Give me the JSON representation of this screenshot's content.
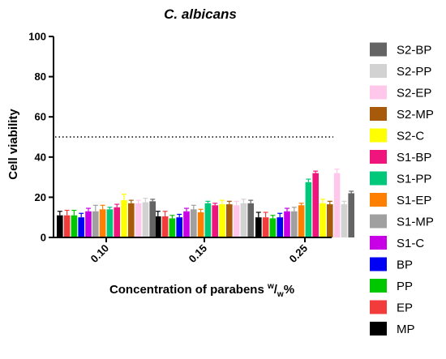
{
  "chart_data": {
    "type": "bar",
    "title": "C. albicans",
    "ylabel": "Cell viability",
    "xlabel_main": "Concentration of parabens ",
    "xlabel_sup": "w",
    "xlabel_slash": "/",
    "xlabel_sub": "w",
    "xlabel_tail": "%",
    "ylim": [
      0,
      100
    ],
    "yticks": [
      "0",
      "20",
      "40",
      "60",
      "80",
      "100"
    ],
    "reference_line": {
      "y": 50,
      "style": "dotted"
    },
    "categories": [
      "0.10",
      "0.15",
      "0.25"
    ],
    "series": [
      {
        "name": "MP",
        "color": "#000000",
        "values": [
          11,
          10.5,
          10
        ],
        "errors": [
          2,
          2.5,
          2.5
        ]
      },
      {
        "name": "EP",
        "color": "#f23c3c",
        "values": [
          11,
          10.5,
          10
        ],
        "errors": [
          2.5,
          2.5,
          2.5
        ]
      },
      {
        "name": "PP",
        "color": "#00c800",
        "values": [
          11,
          9.5,
          9.5
        ],
        "errors": [
          2.5,
          1.5,
          1.5
        ]
      },
      {
        "name": "BP",
        "color": "#0000f5",
        "values": [
          10,
          10,
          10
        ],
        "errors": [
          2,
          1.5,
          2
        ]
      },
      {
        "name": "S1-C",
        "color": "#c800e6",
        "values": [
          13,
          13,
          13
        ],
        "errors": [
          1.5,
          1.5,
          1.5
        ]
      },
      {
        "name": "S1-MP",
        "color": "#a0a0a0",
        "values": [
          13,
          14,
          13
        ],
        "errors": [
          3,
          2,
          2
        ]
      },
      {
        "name": "S1-EP",
        "color": "#ff8000",
        "values": [
          14,
          12.5,
          16
        ],
        "errors": [
          2,
          1.5,
          1
        ]
      },
      {
        "name": "S1-PP",
        "color": "#00c87a",
        "values": [
          14,
          17,
          27.5
        ],
        "errors": [
          1,
          1,
          1.5
        ]
      },
      {
        "name": "S1-BP",
        "color": "#f0147d",
        "values": [
          15,
          16,
          32
        ],
        "errors": [
          1.5,
          1,
          1
        ]
      },
      {
        "name": "S2-C",
        "color": "#ffff00",
        "values": [
          18.5,
          16.5,
          17
        ],
        "errors": [
          3,
          2,
          2
        ]
      },
      {
        "name": "S2-MP",
        "color": "#a65a0a",
        "values": [
          17,
          16.5,
          16.5
        ],
        "errors": [
          1.5,
          1.5,
          1.5
        ]
      },
      {
        "name": "S2-EP",
        "color": "#ffc8eb",
        "values": [
          17,
          16,
          32
        ],
        "errors": [
          1.5,
          2,
          2
        ]
      },
      {
        "name": "S2-PP",
        "color": "#d2d2d2",
        "values": [
          17.5,
          17,
          16.5
        ],
        "errors": [
          2,
          2,
          1.5
        ]
      },
      {
        "name": "S2-BP",
        "color": "#646464",
        "values": [
          18,
          17,
          22
        ],
        "errors": [
          1,
          1.5,
          1
        ]
      }
    ],
    "legend_order": [
      "S2-BP",
      "S2-PP",
      "S2-EP",
      "S2-MP",
      "S2-C",
      "S1-BP",
      "S1-PP",
      "S1-EP",
      "S1-MP",
      "S1-C",
      "BP",
      "PP",
      "EP",
      "MP"
    ],
    "legend_position": "right",
    "grid": false
  }
}
